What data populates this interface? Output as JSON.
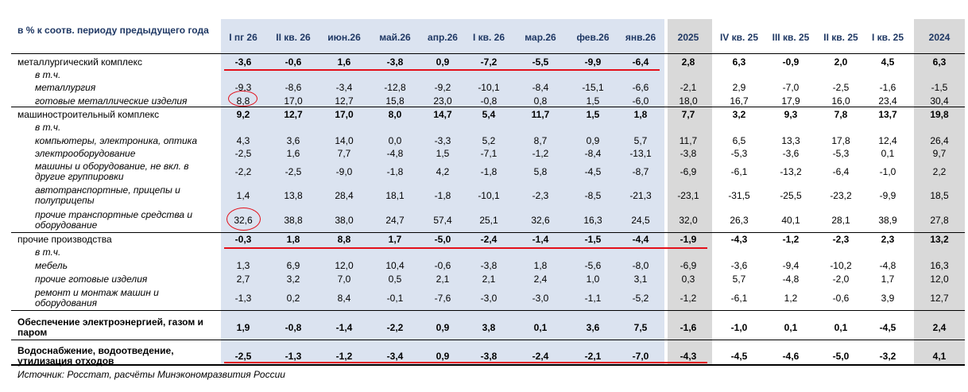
{
  "header_label": "в % к соотв. периоду предыдущего года",
  "columns": [
    "I пг 26",
    "II кв. 26",
    "июн.26",
    "май.26",
    "апр.26",
    "I кв. 26",
    "мар.26",
    "фев.26",
    "янв.26",
    "2025",
    "IV кв. 25",
    "III кв. 25",
    "II кв. 25",
    "I кв. 25",
    "2024"
  ],
  "colors": {
    "header_text": "#1f3864",
    "highlight_band": "#dbe3f0",
    "grey_band": "#d9d9d9",
    "marker_red": "#e3101a"
  },
  "rows": [
    {
      "label": "металлургический комплекс",
      "values": [
        "-3,6",
        "-0,6",
        "1,6",
        "-3,8",
        "0,9",
        "-7,2",
        "-5,5",
        "-9,9",
        "-6,4",
        "2,8",
        "6,3",
        "-0,9",
        "2,0",
        "4,5",
        "6,3"
      ]
    },
    {
      "label": "в т.ч.",
      "values": []
    },
    {
      "label": "металлургия",
      "values": [
        "-9,3",
        "-8,6",
        "-3,4",
        "-12,8",
        "-9,2",
        "-10,1",
        "-8,4",
        "-15,1",
        "-6,6",
        "-2,1",
        "2,9",
        "-7,0",
        "-2,5",
        "-1,6",
        "-1,5"
      ]
    },
    {
      "label": "готовые металлические изделия",
      "values": [
        "8,8",
        "17,0",
        "12,7",
        "15,8",
        "23,0",
        "-0,8",
        "0,8",
        "1,5",
        "-6,0",
        "18,0",
        "16,7",
        "17,9",
        "16,0",
        "23,4",
        "30,4"
      ]
    },
    {
      "label": "машиностроительный комплекс",
      "values": [
        "9,2",
        "12,7",
        "17,0",
        "8,0",
        "14,7",
        "5,4",
        "11,7",
        "1,5",
        "1,8",
        "7,7",
        "3,2",
        "9,3",
        "7,8",
        "13,7",
        "19,8"
      ]
    },
    {
      "label": "в т.ч.",
      "values": []
    },
    {
      "label": "компьютеры, электроника, оптика",
      "values": [
        "4,3",
        "3,6",
        "14,0",
        "0,0",
        "-3,3",
        "5,2",
        "8,7",
        "0,9",
        "5,7",
        "11,7",
        "6,5",
        "13,3",
        "17,8",
        "12,4",
        "26,4"
      ]
    },
    {
      "label": "электрооборудование",
      "values": [
        "-2,5",
        "1,6",
        "7,7",
        "-4,8",
        "1,5",
        "-7,1",
        "-1,2",
        "-8,4",
        "-13,1",
        "-3,8",
        "-5,3",
        "-3,6",
        "-5,3",
        "0,1",
        "9,7"
      ]
    },
    {
      "label": "машины и оборудование, не вкл. в другие группировки",
      "values": [
        "-2,2",
        "-2,5",
        "-9,0",
        "-1,8",
        "4,2",
        "-1,8",
        "5,8",
        "-4,5",
        "-8,7",
        "-6,9",
        "-6,1",
        "-13,2",
        "-6,4",
        "-1,0",
        "2,2"
      ]
    },
    {
      "label": "автотранспортные, прицепы и полуприцепы",
      "values": [
        "1,4",
        "13,8",
        "28,4",
        "18,1",
        "-1,8",
        "-10,1",
        "-2,3",
        "-8,5",
        "-21,3",
        "-23,1",
        "-31,5",
        "-25,5",
        "-23,2",
        "-9,9",
        "18,5"
      ]
    },
    {
      "label": "прочие транспортные средства и оборудование",
      "values": [
        "32,6",
        "38,8",
        "38,0",
        "24,7",
        "57,4",
        "25,1",
        "32,6",
        "16,3",
        "24,5",
        "32,0",
        "26,3",
        "40,1",
        "28,1",
        "38,9",
        "27,8"
      ]
    },
    {
      "label": "прочие производства",
      "values": [
        "-0,3",
        "1,8",
        "8,8",
        "1,7",
        "-5,0",
        "-2,4",
        "-1,4",
        "-1,5",
        "-4,4",
        "-1,9",
        "-4,3",
        "-1,2",
        "-2,3",
        "2,3",
        "13,2"
      ]
    },
    {
      "label": "в т.ч.",
      "values": []
    },
    {
      "label": "мебель",
      "values": [
        "1,3",
        "6,9",
        "12,0",
        "10,4",
        "-0,6",
        "-3,8",
        "1,8",
        "-5,6",
        "-8,0",
        "-6,9",
        "-3,6",
        "-9,4",
        "-10,2",
        "-4,8",
        "16,3"
      ]
    },
    {
      "label": "прочие готовые изделия",
      "values": [
        "2,7",
        "3,2",
        "7,0",
        "0,5",
        "2,1",
        "2,1",
        "2,4",
        "1,0",
        "3,1",
        "0,3",
        "5,7",
        "-4,8",
        "-2,0",
        "1,7",
        "12,0"
      ]
    },
    {
      "label": "ремонт и монтаж машин и оборудования",
      "values": [
        "-1,3",
        "0,2",
        "8,4",
        "-0,1",
        "-7,6",
        "-3,0",
        "-3,0",
        "-1,1",
        "-5,2",
        "-1,2",
        "-6,1",
        "1,2",
        "-0,6",
        "3,9",
        "12,7"
      ]
    },
    {
      "label": "Обеспечение электроэнергией, газом и паром",
      "values": [
        "1,9",
        "-0,8",
        "-1,4",
        "-2,2",
        "0,9",
        "3,8",
        "0,1",
        "3,6",
        "7,5",
        "-1,6",
        "-1,0",
        "0,1",
        "0,1",
        "-4,5",
        "2,4"
      ]
    },
    {
      "label": "Водоснабжение, водоотведение, утилизация отходов",
      "values": [
        "-2,5",
        "-1,3",
        "-1,2",
        "-3,4",
        "0,9",
        "-3,8",
        "-2,4",
        "-2,1",
        "-7,0",
        "-4,3",
        "-4,5",
        "-4,6",
        "-5,0",
        "-3,2",
        "4,1"
      ]
    }
  ],
  "source": "Источник: Росстат, расчёты Минэкономразвития России"
}
